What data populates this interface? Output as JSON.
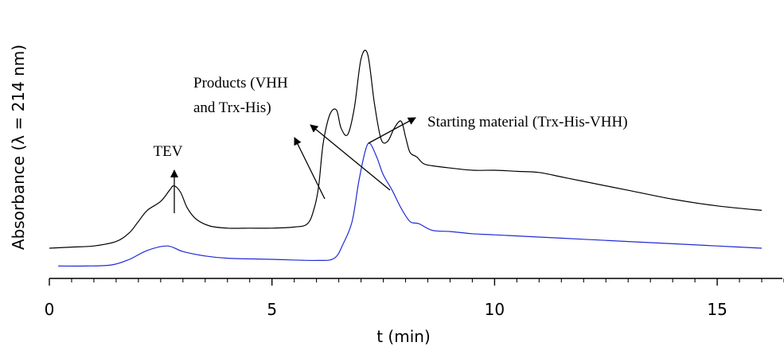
{
  "chart_data": {
    "type": "line",
    "xlabel": "t (min)",
    "ylabel": "Absorbance (λ = 214 nm)",
    "xlim": [
      0,
      16.5
    ],
    "xticks_major": [
      0,
      5,
      10,
      15
    ],
    "xtick_labels": [
      "0",
      "5",
      "10",
      "15"
    ],
    "xticks_minor_step": 0.5,
    "y_axis_shown": false,
    "grid": false,
    "legend": "none",
    "ylim": [
      0,
      100
    ],
    "series": [
      {
        "color": "#000000",
        "x": [
          0,
          0.5,
          1.0,
          1.5,
          1.8,
          2.0,
          2.2,
          2.5,
          2.7,
          2.8,
          2.95,
          3.1,
          3.3,
          3.6,
          4.0,
          4.5,
          5.0,
          5.5,
          5.8,
          5.95,
          6.05,
          6.15,
          6.3,
          6.45,
          6.55,
          6.7,
          6.85,
          7.0,
          7.15,
          7.3,
          7.45,
          7.6,
          7.75,
          7.9,
          8.0,
          8.1,
          8.25,
          8.4,
          8.6,
          9.0,
          9.5,
          10.0,
          10.5,
          11.0,
          11.5,
          12.0,
          13.0,
          14.0,
          15.0,
          16.0
        ],
        "y": [
          10,
          10.5,
          11,
          13,
          17,
          22,
          27,
          31,
          36,
          38,
          35,
          28,
          23,
          20,
          19,
          19,
          19,
          19.5,
          21,
          28,
          38,
          57,
          70,
          72,
          64,
          61,
          73,
          95,
          97,
          75,
          59,
          58,
          64,
          67,
          60,
          53,
          51,
          48,
          47,
          46,
          45,
          45,
          44.5,
          44,
          42,
          40,
          36,
          32,
          29,
          27
        ]
      },
      {
        "color": "#1f2ad6",
        "x": [
          0.2,
          0.8,
          1.4,
          1.8,
          2.2,
          2.65,
          3.0,
          3.5,
          4.0,
          5.0,
          6.0,
          6.4,
          6.6,
          6.8,
          6.95,
          7.1,
          7.2,
          7.35,
          7.5,
          7.7,
          7.9,
          8.1,
          8.3,
          8.6,
          9.0,
          9.5,
          10.0,
          11.0,
          12.0,
          13.0,
          14.0,
          15.0,
          16.0
        ],
        "y": [
          2,
          2,
          2.5,
          5,
          9,
          11,
          8.5,
          6.5,
          5.5,
          5,
          4.5,
          5.5,
          12,
          22,
          40,
          54,
          57,
          51,
          43,
          36,
          28,
          22,
          21,
          18,
          17.5,
          16.5,
          16,
          15,
          14,
          13,
          12,
          11,
          10
        ]
      }
    ],
    "annotations": [
      {
        "id": "tev",
        "lines": [
          "TEV"
        ]
      },
      {
        "id": "products",
        "lines": [
          "Products (VHH",
          "and Trx-His)"
        ]
      },
      {
        "id": "starting",
        "lines": [
          "Starting material (Trx-His-VHH)"
        ]
      }
    ]
  }
}
